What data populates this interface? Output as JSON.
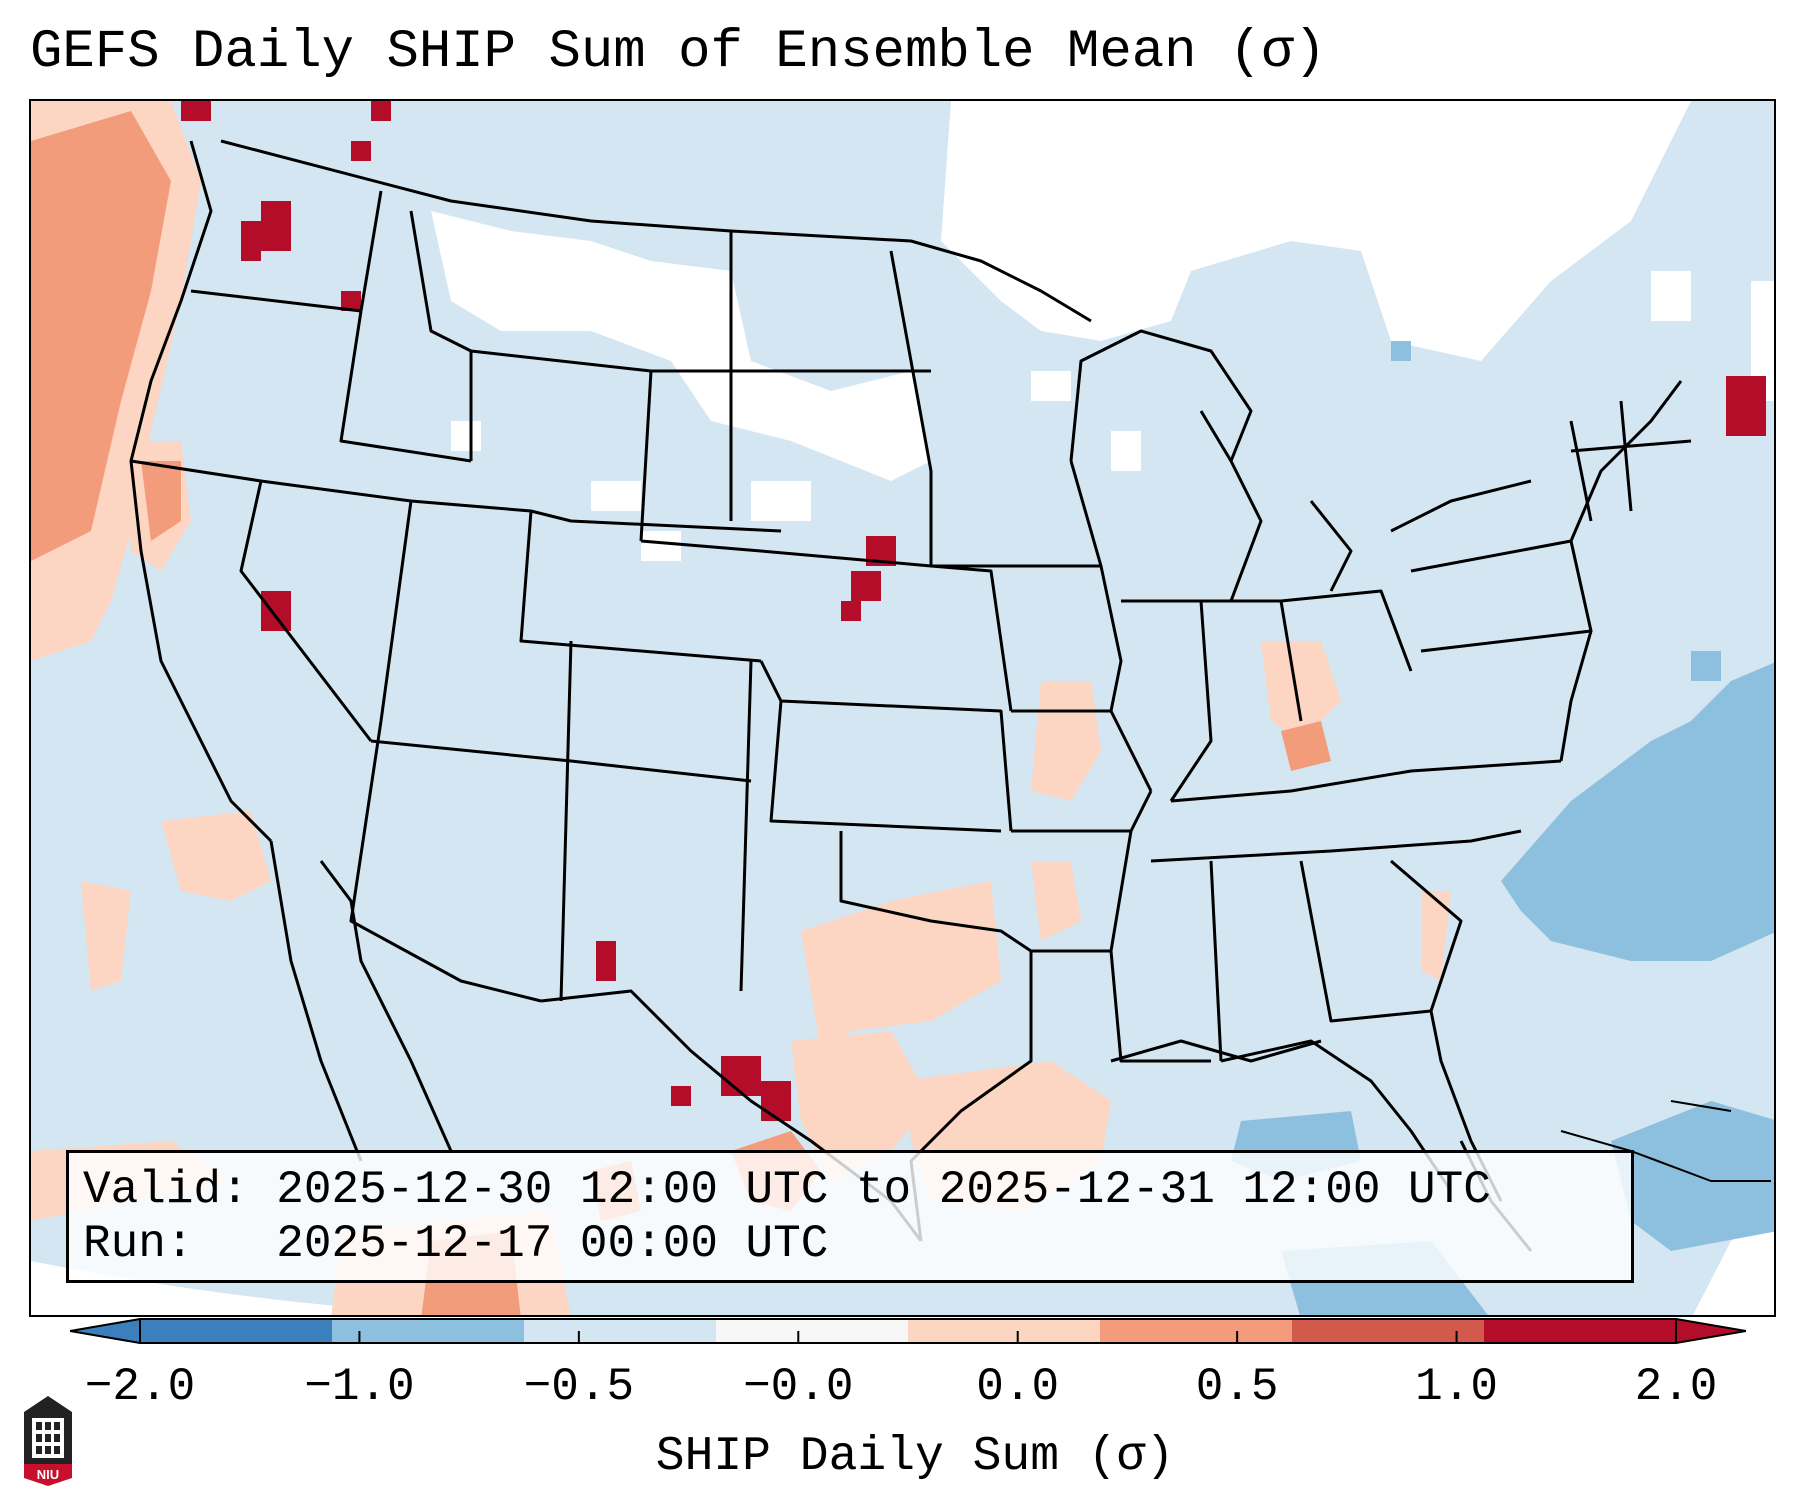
{
  "title": "GEFS Daily SHIP Sum of Ensemble Mean (σ)",
  "info": {
    "valid_label": "Valid:",
    "valid_value": "2025-12-30 12:00 UTC to 2025-12-31 12:00 UTC",
    "run_label": "Run:",
    "run_value": "2025-12-17 00:00 UTC"
  },
  "colorbar": {
    "label": "SHIP Daily Sum (σ)",
    "ticks": [
      "−2.0",
      "−1.0",
      "−0.5",
      "−0.0",
      "0.0",
      "0.5",
      "1.0",
      "2.0"
    ],
    "colors": [
      "#3b7fbd",
      "#8dc0df",
      "#d3e6f1",
      "#f7f7f7",
      "#fcd6c2",
      "#f29c7c",
      "#d25a4c",
      "#b30d2a"
    ],
    "extend": "both"
  },
  "map": {
    "region": "Contiguous United States",
    "background_color": "#d3e6f1"
  },
  "logo": {
    "text": "NIU",
    "color": "#c8102e"
  }
}
